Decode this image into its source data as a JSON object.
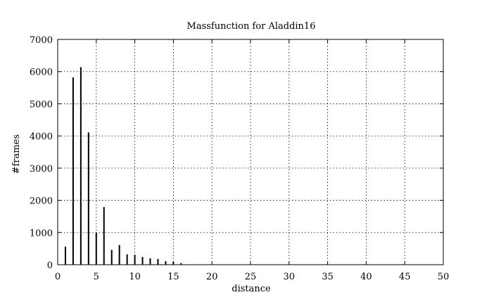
{
  "chart_data": {
    "type": "bar",
    "title": "Massfunction for Aladdin16",
    "xlabel": "distance",
    "ylabel": "#frames",
    "xlim": [
      0,
      50
    ],
    "ylim": [
      0,
      7000
    ],
    "xticks": [
      0,
      5,
      10,
      15,
      20,
      25,
      30,
      35,
      40,
      45,
      50
    ],
    "yticks": [
      0,
      1000,
      2000,
      3000,
      4000,
      5000,
      6000,
      7000
    ],
    "grid": true,
    "legend": "none",
    "bar_color": "#000000",
    "x": [
      1,
      2,
      3,
      4,
      5,
      6,
      7,
      8,
      9,
      10,
      11,
      12,
      13,
      14,
      15,
      16
    ],
    "values": [
      560,
      5820,
      6140,
      4110,
      1000,
      1790,
      460,
      610,
      320,
      310,
      240,
      200,
      180,
      110,
      90,
      50
    ]
  }
}
